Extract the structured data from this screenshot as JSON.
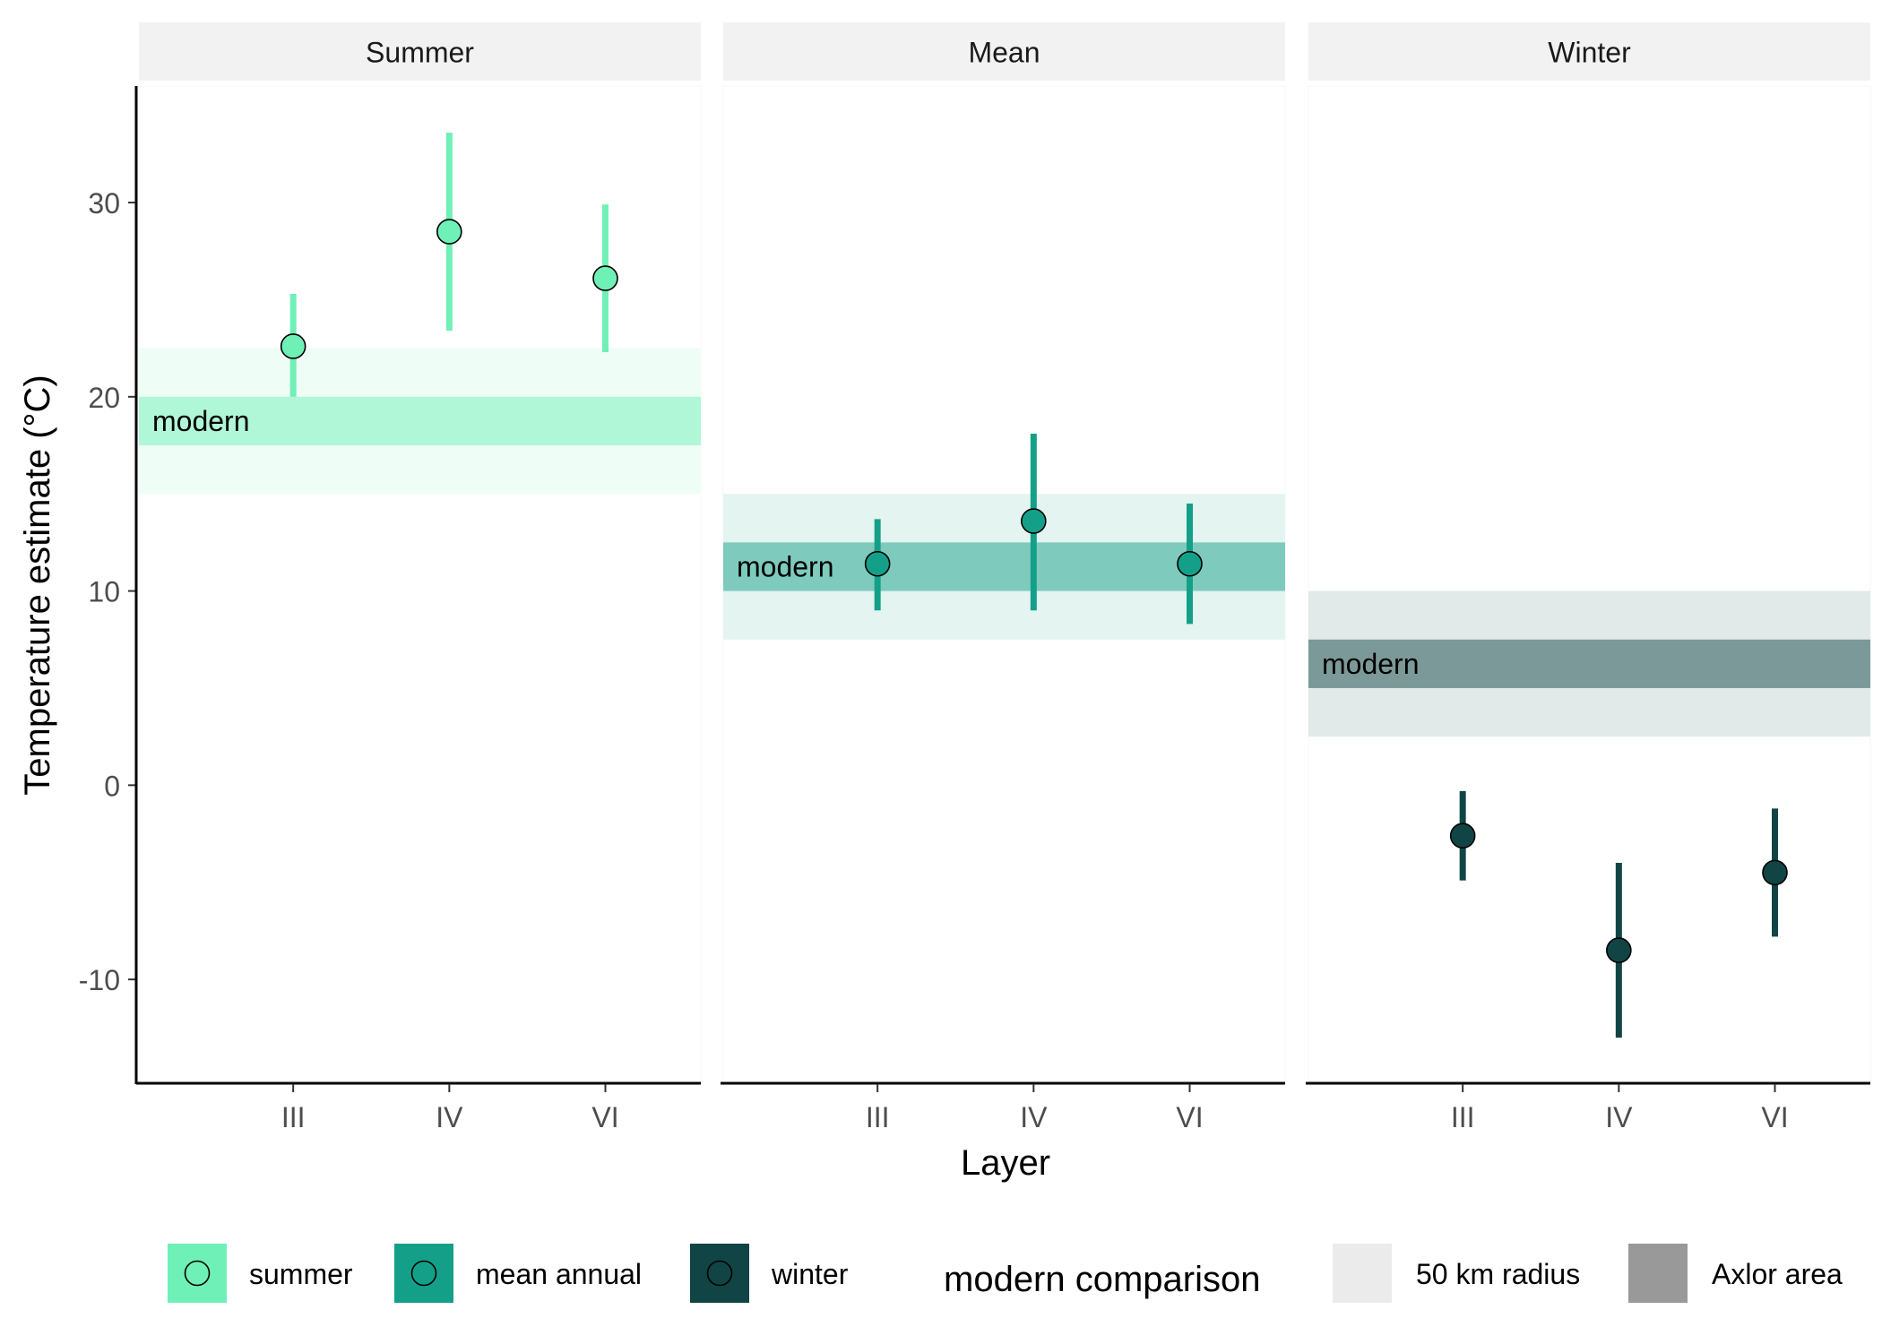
{
  "chart_data": {
    "type": "scatter",
    "subtype": "point-range with faceted panels",
    "ylabel": "Temperature estimate (°C)",
    "xlabel": "Layer",
    "categories": [
      "III",
      "IV",
      "VI"
    ],
    "ylim": [
      -15.3,
      36
    ],
    "yticks": [
      -10,
      0,
      10,
      20,
      30
    ],
    "ytick_labels": [
      "-10",
      "0",
      "10",
      "20",
      "30"
    ],
    "grid": false,
    "legend_position": "bottom",
    "band_label": "modern",
    "facets": [
      {
        "strip": "Summer",
        "series": "summer",
        "color": "#6ff0b6",
        "band_50km": [
          15,
          22.5
        ],
        "band_axlor": [
          17.5,
          20
        ],
        "points": [
          {
            "layer": "III",
            "y": 22.6,
            "low": 20.0,
            "high": 25.3
          },
          {
            "layer": "IV",
            "y": 28.5,
            "low": 23.4,
            "high": 33.6
          },
          {
            "layer": "VI",
            "y": 26.1,
            "low": 22.3,
            "high": 29.9
          }
        ]
      },
      {
        "strip": "Mean",
        "series": "mean annual",
        "color": "#14a088",
        "band_50km": [
          7.5,
          15
        ],
        "band_axlor": [
          10,
          12.5
        ],
        "points": [
          {
            "layer": "III",
            "y": 11.4,
            "low": 9.0,
            "high": 13.7
          },
          {
            "layer": "IV",
            "y": 13.6,
            "low": 9.0,
            "high": 18.1
          },
          {
            "layer": "VI",
            "y": 11.4,
            "low": 8.3,
            "high": 14.5
          }
        ]
      },
      {
        "strip": "Winter",
        "series": "winter",
        "color": "#114545",
        "band_50km": [
          2.5,
          10
        ],
        "band_axlor": [
          5,
          7.5
        ],
        "points": [
          {
            "layer": "III",
            "y": -2.6,
            "low": -4.9,
            "high": -0.3
          },
          {
            "layer": "IV",
            "y": -8.5,
            "low": -13.0,
            "high": -4.0
          },
          {
            "layer": "VI",
            "y": -4.5,
            "low": -7.8,
            "high": -1.2
          }
        ]
      }
    ],
    "legend": {
      "series": [
        {
          "label": "summer",
          "color": "#6ff0b6"
        },
        {
          "label": "mean annual",
          "color": "#14a088"
        },
        {
          "label": "winter",
          "color": "#114545"
        }
      ],
      "comparison_title": "modern comparison",
      "comparison": [
        {
          "label": "50 km radius",
          "color": "#ebebeb"
        },
        {
          "label": "Axlor area",
          "color": "#999999"
        }
      ]
    }
  }
}
